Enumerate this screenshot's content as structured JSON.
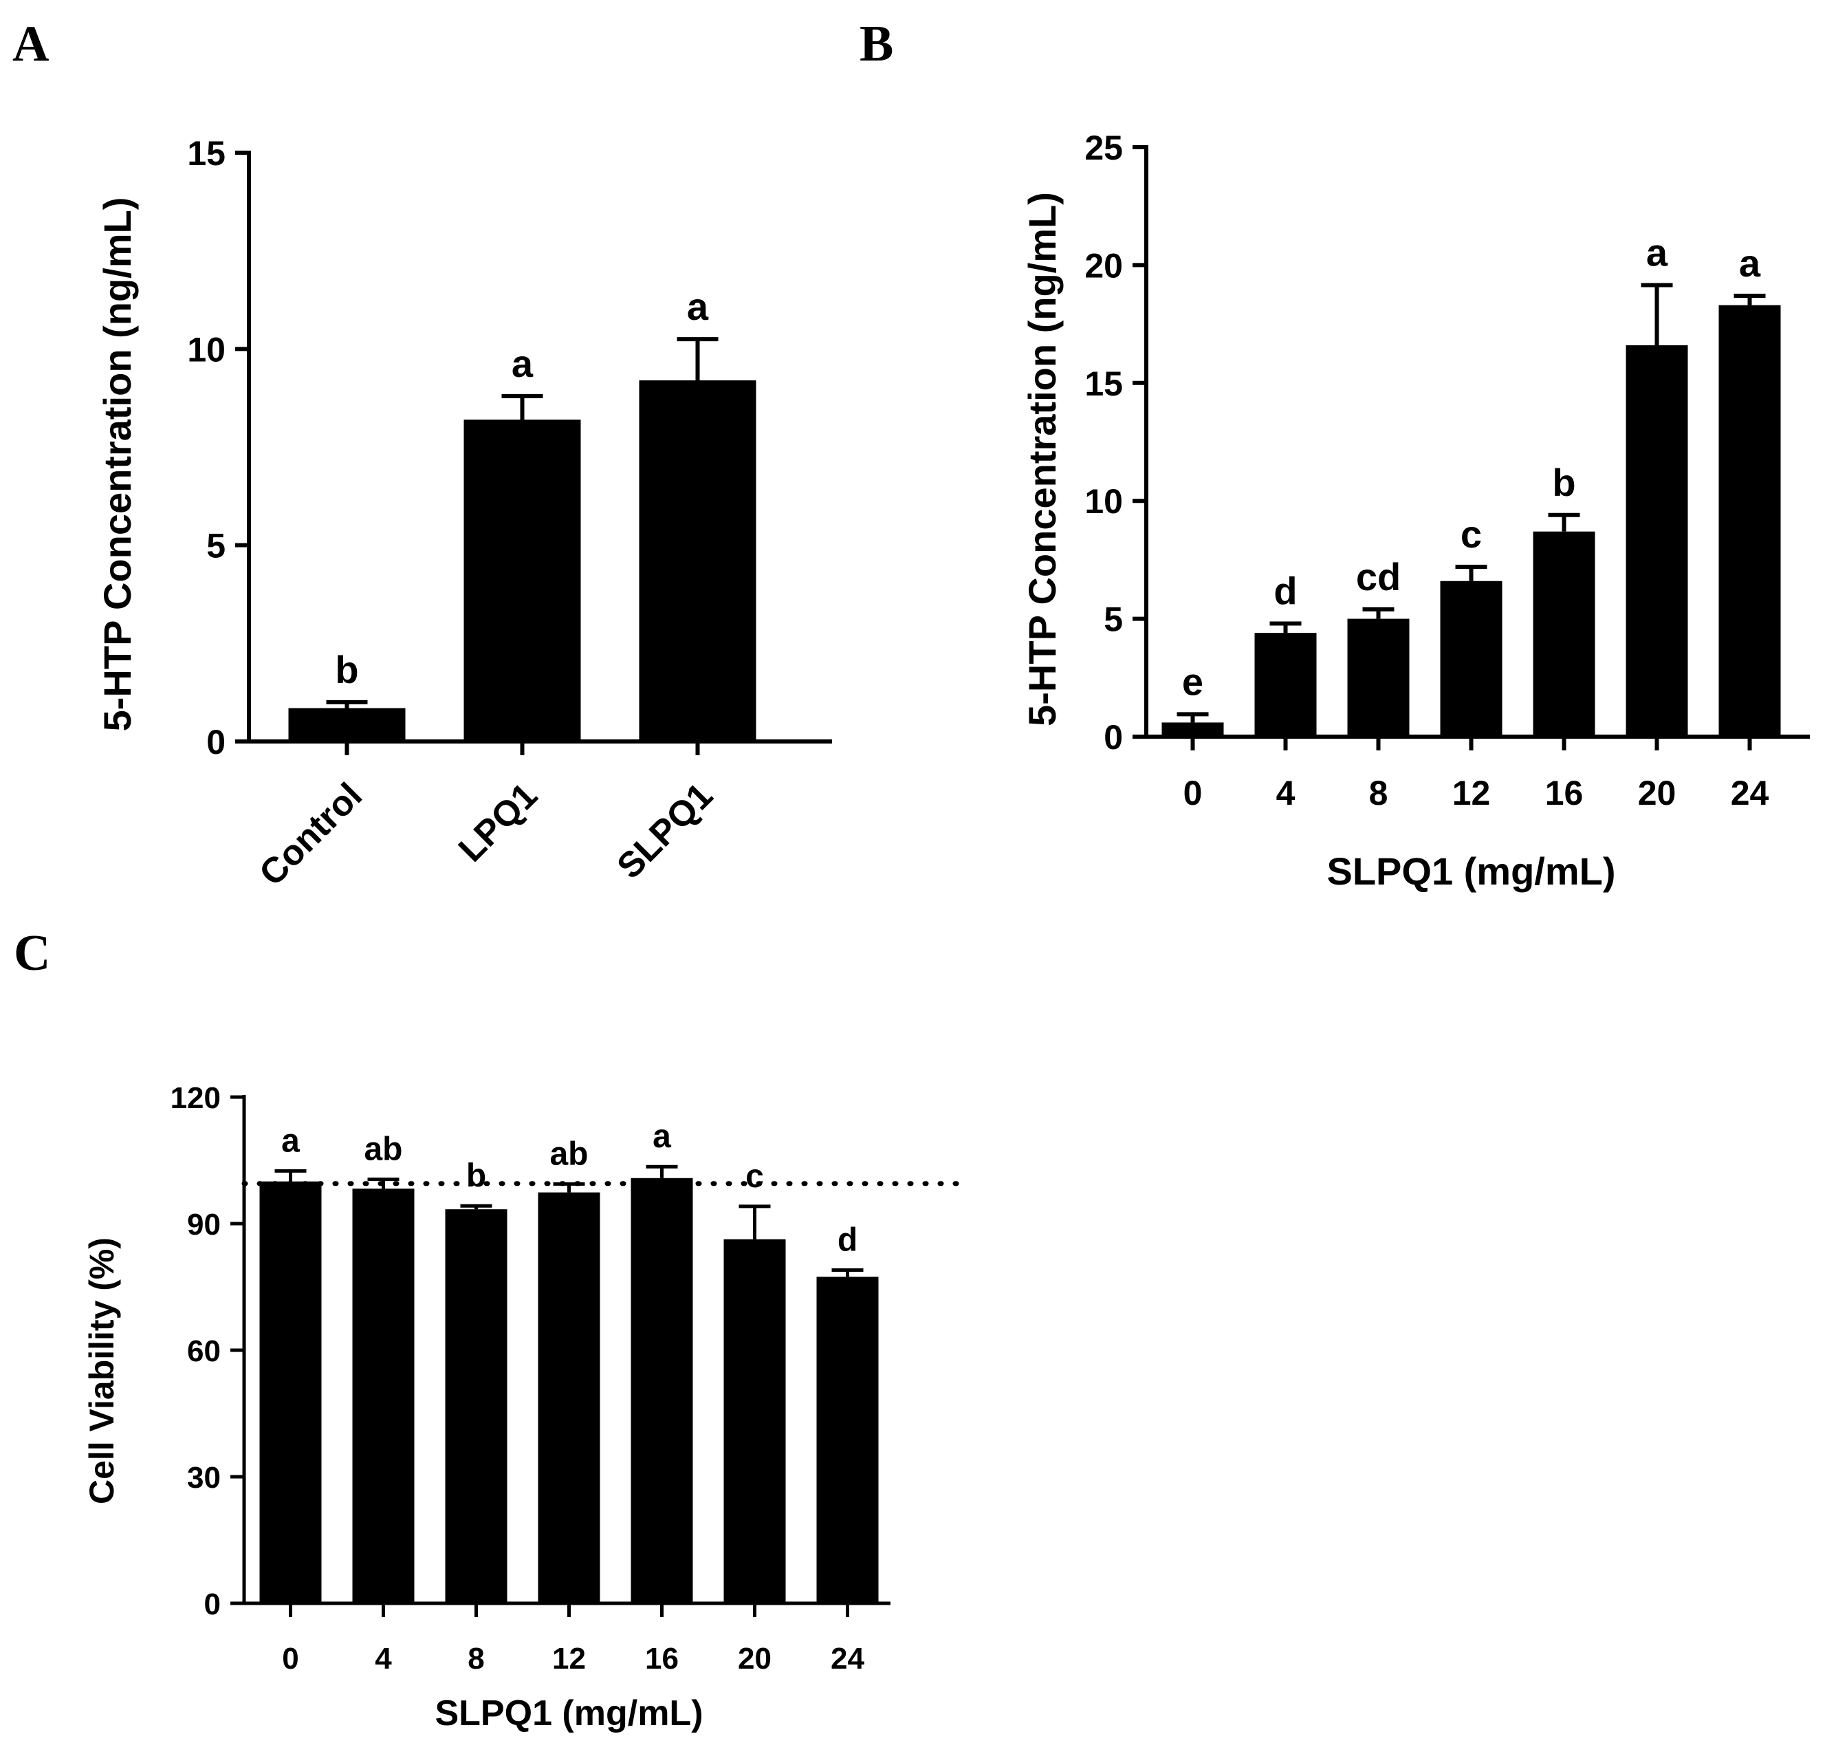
{
  "figure": {
    "panels": [
      "A",
      "B",
      "C"
    ]
  },
  "chart_data": [
    {
      "panel": "A",
      "type": "bar",
      "categories": [
        "Control",
        "LPQ1",
        "SLPQ1"
      ],
      "values": [
        0.85,
        8.2,
        9.2
      ],
      "errors": [
        0.15,
        0.6,
        1.05
      ],
      "significance": [
        "b",
        "a",
        "a"
      ],
      "title": "",
      "xlabel": "",
      "ylabel": "5-HTP Concentration (ng/mL)",
      "ylim": [
        0,
        15
      ],
      "yticks": [
        0,
        5,
        10,
        15
      ],
      "grid": false,
      "bar_color": "#000000"
    },
    {
      "panel": "B",
      "type": "bar",
      "categories": [
        "0",
        "4",
        "8",
        "12",
        "16",
        "20",
        "24"
      ],
      "values": [
        0.6,
        4.4,
        5.0,
        6.6,
        8.7,
        16.6,
        18.3
      ],
      "errors": [
        0.35,
        0.4,
        0.4,
        0.6,
        0.7,
        2.55,
        0.4
      ],
      "significance": [
        "e",
        "d",
        "cd",
        "c",
        "b",
        "a",
        "a"
      ],
      "title": "",
      "xlabel": "SLPQ1 (mg/mL)",
      "ylabel": "5-HTP Concentration (ng/mL)",
      "ylim": [
        0,
        25
      ],
      "yticks": [
        0,
        5,
        10,
        15,
        20,
        25
      ],
      "grid": false,
      "bar_color": "#000000"
    },
    {
      "panel": "C",
      "type": "bar",
      "categories": [
        "0",
        "4",
        "8",
        "12",
        "16",
        "20",
        "24"
      ],
      "values": [
        100,
        98.3,
        93.4,
        97.4,
        100.8,
        86.3,
        77.4
      ],
      "errors": [
        2.5,
        2.2,
        0.8,
        2.0,
        2.7,
        7.8,
        1.6
      ],
      "significance": [
        "a",
        "ab",
        "b",
        "ab",
        "a",
        "c",
        "d"
      ],
      "title": "",
      "xlabel": "SLPQ1 (mg/mL)",
      "ylabel": "Cell Viability (%)",
      "ylim": [
        0,
        120
      ],
      "yticks": [
        0,
        30,
        60,
        90,
        120
      ],
      "reference_line": 99.5,
      "grid": false,
      "bar_color": "#000000"
    }
  ]
}
